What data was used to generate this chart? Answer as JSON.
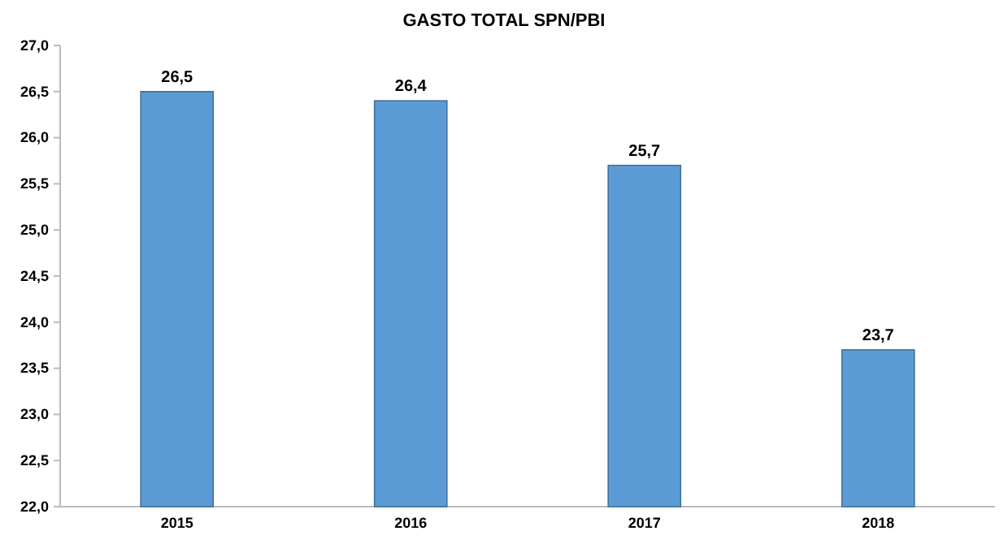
{
  "chart_data": {
    "type": "bar",
    "title": "GASTO TOTAL SPN/PBI",
    "categories": [
      "2015",
      "2016",
      "2017",
      "2018"
    ],
    "values": [
      26.5,
      26.4,
      25.7,
      23.7
    ],
    "value_labels": [
      "26,5",
      "26,4",
      "25,7",
      "23,7"
    ],
    "color": "#5b9bd5",
    "ylim": [
      22,
      27
    ],
    "yticks": [
      {
        "value": 22,
        "label": "22,0"
      },
      {
        "value": 22.5,
        "label": "22,5"
      },
      {
        "value": 23,
        "label": "23,0"
      },
      {
        "value": 23.5,
        "label": "23,5"
      },
      {
        "value": 24,
        "label": "24,0"
      },
      {
        "value": 24.5,
        "label": "24,5"
      },
      {
        "value": 25,
        "label": "25,0"
      },
      {
        "value": 25.5,
        "label": "25,5"
      },
      {
        "value": 26,
        "label": "26,0"
      },
      {
        "value": 26.5,
        "label": "26,5"
      },
      {
        "value": 27,
        "label": "27,0"
      }
    ]
  }
}
